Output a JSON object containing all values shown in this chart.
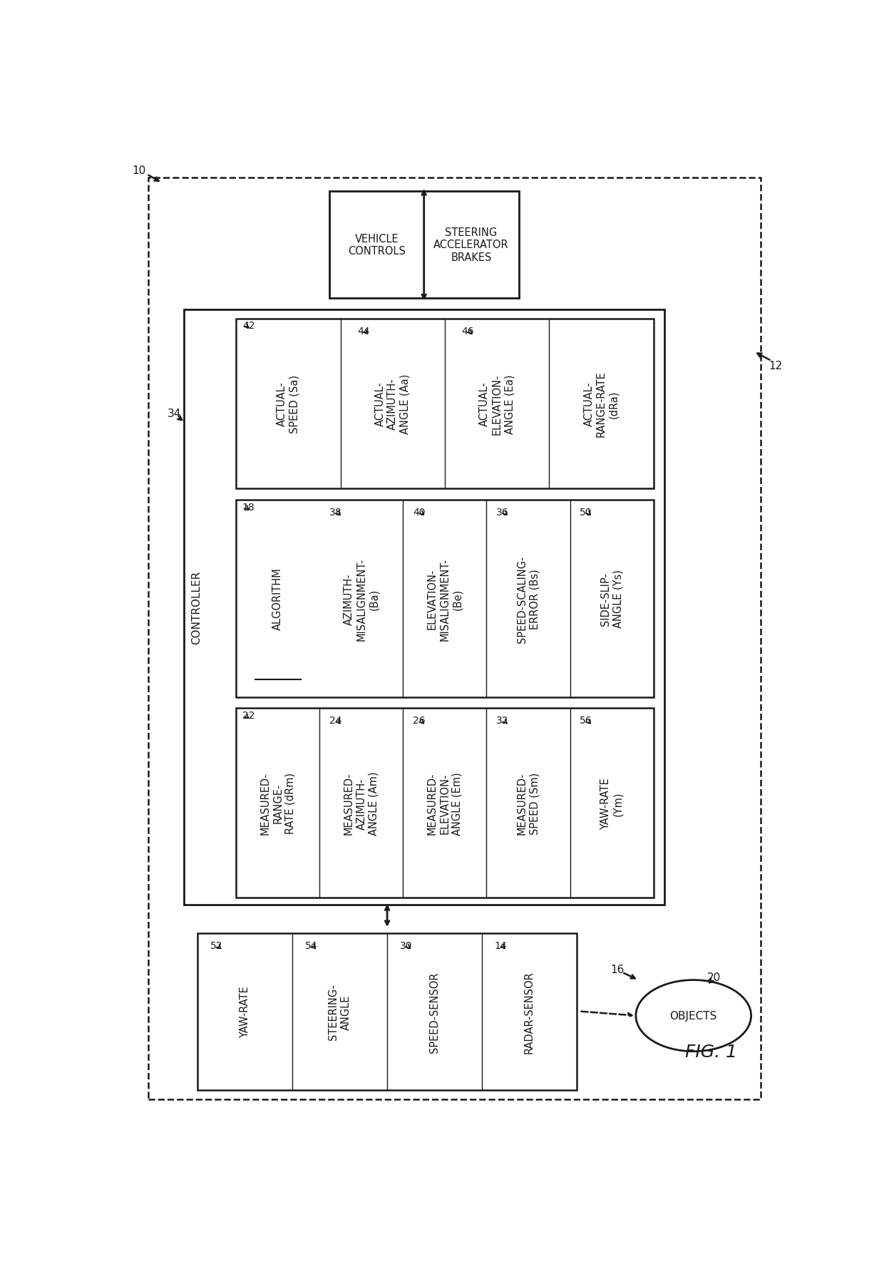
{
  "bg_color": "#ffffff",
  "line_color": "#1a1a1a",
  "fig_label": "FIG. 1",
  "fig_fontsize": 18,
  "ref_numbers": {
    "system": "10",
    "outer": "12",
    "controller_label": "34",
    "box42": "42",
    "box18": "18",
    "box22": "22",
    "item44": "44",
    "item46": "46",
    "item38": "38",
    "item40": "40",
    "item36": "36",
    "item50": "50",
    "item24": "24",
    "item26": "26",
    "item32": "32",
    "item56": "56",
    "item52": "52",
    "item54": "54",
    "item30": "30",
    "item14": "14",
    "objects_num": "20",
    "arrow16": "16"
  },
  "vc_left_text": "VEHICLE\nCONTROLS",
  "vc_right_text": "STEERING\nACCELERATOR\nBRAKES",
  "controller_text": "CONTROLLER",
  "algorithm_text": "ALGORITHM",
  "box42_items": [
    "ACTUAL-\nSPEED (Sa)",
    "ACTUAL-\nAZIMUTH-\nANGLE (Aa)",
    "ACTUAL-\nELEVATION-\nANGLE (Ea)",
    "ACTUAL-\nRANGE-RATE\n(dRa)"
  ],
  "box18_items": [
    "AZIMUTH-\nMISALIGNMENT-\n(Ba)",
    "ELEVATION-\nMISALIGNMENT-\n(Be)",
    "SPEED-SCALING-\nERROR (Bs)",
    "SIDE-SLIP-\nANGLE (Ys)"
  ],
  "box22_items": [
    "MEASURED-\nRANGE-\nRATE (dRm)",
    "MEASURED-\nAZIMUTH-\nANGLE (Am)",
    "MEASURED-\nELEVATION-\nANGLE (Em)",
    "MEASURED-\nSPEED (Sm)",
    "YAW-RATE\n(Ym)"
  ],
  "sensors_items": [
    "YAW-RATE",
    "STEERING-\nANGLE",
    "SPEED-SENSOR",
    "RADAR-SENSOR"
  ],
  "objects_text": "OBJECTS"
}
